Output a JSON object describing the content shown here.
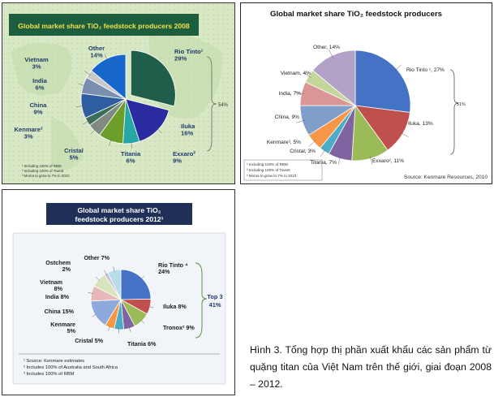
{
  "chart_data": [
    {
      "type": "pie",
      "title": "Global market share TiO₂ feedstock producers 2008",
      "categories": [
        "Rio Tinto¹",
        "Iluka",
        "Titania",
        "Exxaro²",
        "Cristal",
        "Kenmare³",
        "China",
        "India",
        "Vietnam",
        "Other"
      ],
      "labels": [
        "Rio Tinto¹",
        "Iluka",
        "Titania",
        "Exxaro²",
        "Cristal",
        "Kenmare³",
        "China",
        "India",
        "Vietnam",
        "Other"
      ],
      "values_text": [
        "29%",
        "16%",
        "6%",
        "9%",
        "5%",
        "3%",
        "9%",
        "6%",
        "3%",
        "14%"
      ],
      "values": [
        29,
        16,
        6,
        9,
        5,
        3,
        9,
        6,
        3,
        14
      ],
      "colors": [
        "#1f5e4a",
        "#2b2ba0",
        "#27a6a6",
        "#6e9e2a",
        "#7f8a80",
        "#3b6e5a",
        "#2f5ea0",
        "#7a8fb0",
        "#c8c8c8",
        "#1667c9"
      ],
      "bracket_label": "54%",
      "footnotes": [
        "¹ Including 100% of RBM",
        "² Including 100% of Tiwest",
        "³ Moma to grow to 7% in 2010"
      ]
    },
    {
      "type": "pie",
      "title": "Global market share TiO₂ feedstock producers",
      "categories": [
        "Rio Tinto",
        "Iluka",
        "Exxaro",
        "Titania",
        "Cristal",
        "Kenmare",
        "China",
        "India",
        "Vietnam",
        "Other"
      ],
      "labels": [
        "Rio Tinto ¹, 27%",
        "Iluka, 13%",
        "Exxaro², 11%",
        "Titania, 7%",
        "Cristal, 3%",
        "Kenmare³, 5%",
        "China, 9%",
        "India, 7%",
        "Vietnam, 4%",
        "Other, 14%"
      ],
      "values": [
        27,
        13,
        11,
        7,
        3,
        5,
        9,
        7,
        4,
        14
      ],
      "colors": [
        "#4472c4",
        "#c0504d",
        "#9bbb59",
        "#8064a2",
        "#4bacc6",
        "#f79646",
        "#7f9ec9",
        "#d99694",
        "#c3d69b",
        "#b3a2c7"
      ],
      "bracket_label": "51%",
      "footnotes": [
        "¹ Including 100% of RBM",
        "² Including 100% of Tiwest",
        "³ Moma to grow to 7% in 2010"
      ],
      "source": "Source: Kenmare Resources, 2010"
    },
    {
      "type": "pie",
      "title": "Global market share TiO₂",
      "title_line2": "feedstock producers 2012¹",
      "categories": [
        "Rio Tinto",
        "Iluka",
        "Tronox",
        "Titania",
        "Cristal",
        "Kenmare",
        "China",
        "India",
        "Vietnam",
        "Ostchem",
        "Other"
      ],
      "labels": [
        "Rio Tinto ⁴",
        "Iluka 8%",
        "Tronox² 9%",
        "Titania 6%",
        "Cristal 5%",
        "Kenmare",
        "China 15%",
        "India 8%",
        "Vietnam",
        "Ostchem",
        "Other 7%"
      ],
      "sublabels": [
        "24%",
        "",
        "",
        "",
        "",
        "5%",
        "",
        "",
        "8%",
        "2%",
        ""
      ],
      "values": [
        24,
        8,
        9,
        6,
        5,
        5,
        15,
        8,
        8,
        2,
        7
      ],
      "colors": [
        "#4472c4",
        "#c0504d",
        "#9bbb59",
        "#8064a2",
        "#4bacc6",
        "#f79646",
        "#8ea9db",
        "#e6b9b8",
        "#d7e4bd",
        "#ccc1da",
        "#b7dee8"
      ],
      "bracket_label": "Top 3",
      "bracket_value": "41%",
      "footnotes": [
        "¹ Source: Kenmare estimates",
        "² Includes 100% of Australia and South Africa",
        "³ Includes 100% of RBM"
      ]
    }
  ],
  "caption": "Hình 3.  Tổng hợp thị phần xuất khẩu các sản phẩm từ quặng titan của Việt Nam trên thế giới, giai đoạn 2008 – 2012."
}
